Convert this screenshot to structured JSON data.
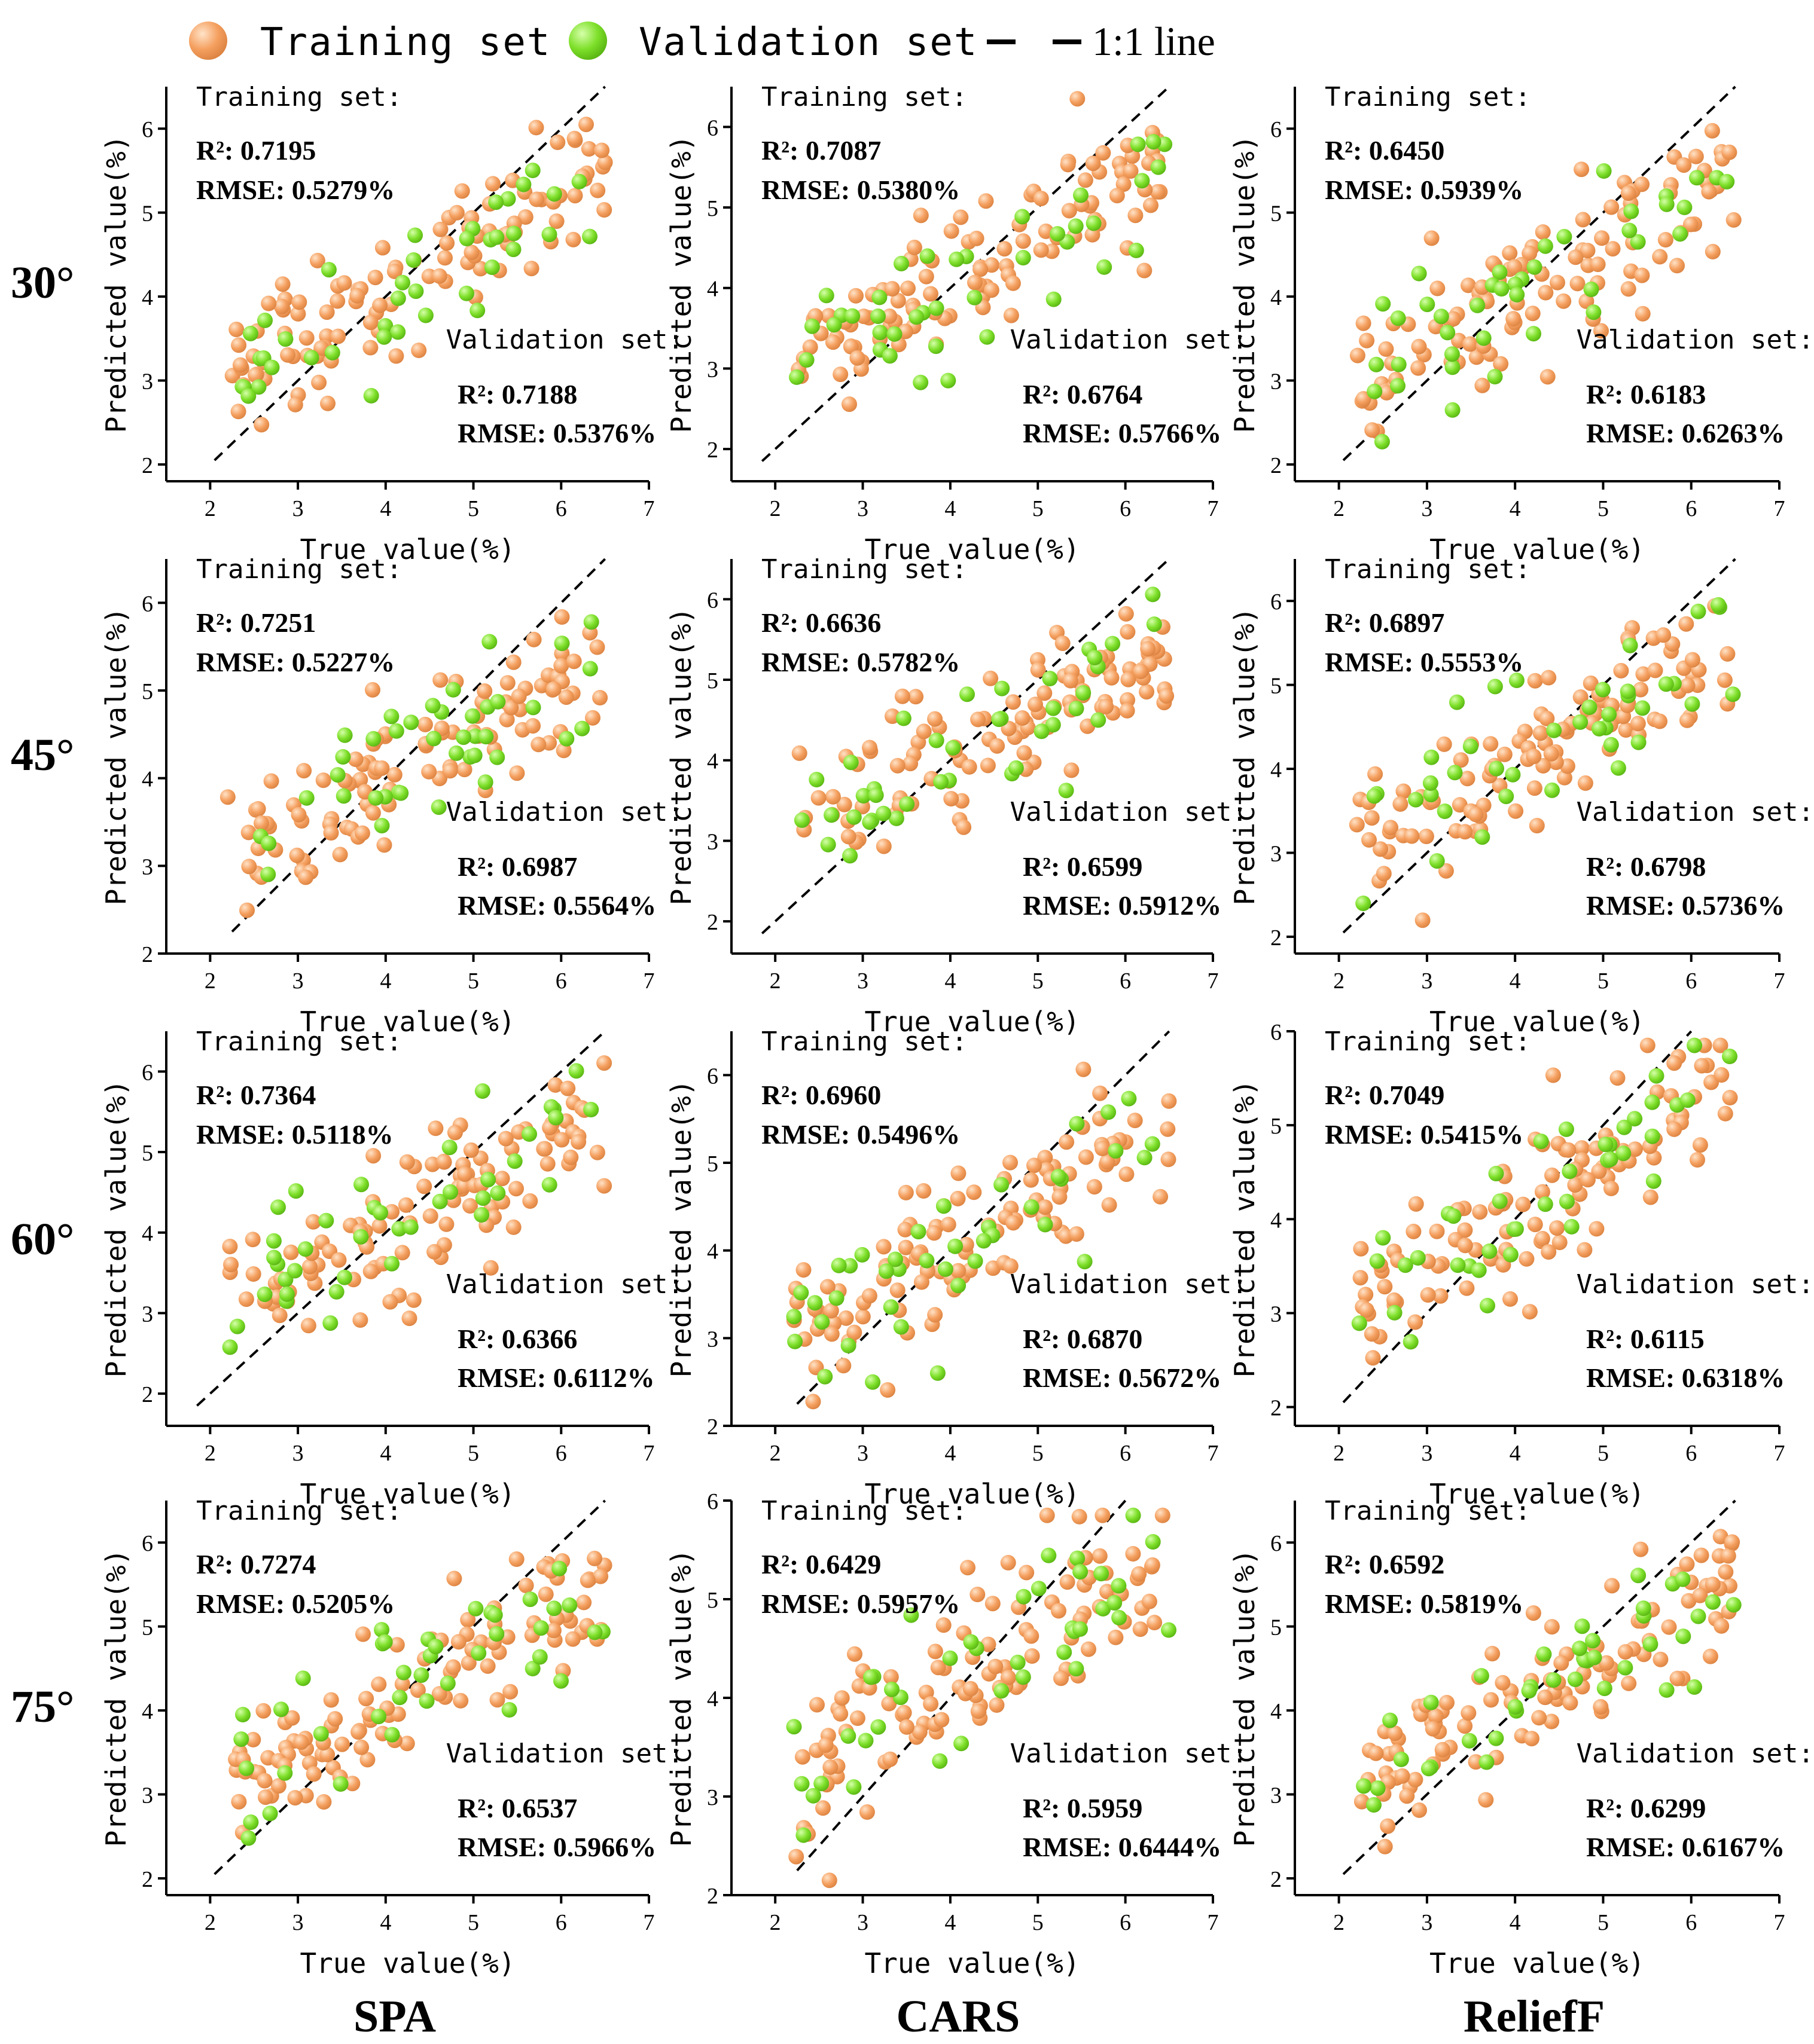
{
  "colors": {
    "training": "#f5a060",
    "training_highlight": "#ffe3c8",
    "training_edge": "#d9803e",
    "validation": "#7ee02a",
    "validation_highlight": "#d6ffaa",
    "validation_edge": "#55b010",
    "line": "#000000"
  },
  "legend": {
    "training_label": "Training set",
    "validation_label": "Validation set",
    "line_label": "1:1 line"
  },
  "row_labels": [
    "30°",
    "45°",
    "60°",
    "75°"
  ],
  "col_labels": [
    "SPA",
    "CARS",
    "ReliefF"
  ],
  "text": {
    "xlabel": "True value(%)",
    "ylabel": "Predicted value(%)",
    "training_heading": "Training set:",
    "validation_heading": "Validation set:",
    "r2_label": "R²:",
    "rmse_label": "RMSE:"
  },
  "chart_data": [
    {
      "type": "scatter",
      "row": "30°",
      "col": "SPA",
      "xlim": [
        1.5,
        7
      ],
      "ylim": [
        1.8,
        6.5
      ],
      "yticks": [
        2,
        3,
        4,
        5,
        6
      ],
      "xticks": [
        2,
        3,
        4,
        5,
        6,
        7
      ],
      "training": {
        "r2": "0.7195",
        "rmse": "0.5279%"
      },
      "validation": {
        "r2": "0.7188",
        "rmse": "0.5376%"
      },
      "seed": 11
    },
    {
      "type": "scatter",
      "row": "30°",
      "col": "CARS",
      "xlim": [
        1.5,
        7
      ],
      "ylim": [
        1.6,
        6.5
      ],
      "yticks": [
        2,
        3,
        4,
        5,
        6
      ],
      "xticks": [
        2,
        3,
        4,
        5,
        6,
        7
      ],
      "training": {
        "r2": "0.7087",
        "rmse": "0.5380%"
      },
      "validation": {
        "r2": "0.6764",
        "rmse": "0.5766%"
      },
      "seed": 12
    },
    {
      "type": "scatter",
      "row": "30°",
      "col": "ReliefF",
      "xlim": [
        1.5,
        7
      ],
      "ylim": [
        1.8,
        6.5
      ],
      "yticks": [
        2,
        3,
        4,
        5,
        6
      ],
      "xticks": [
        2,
        3,
        4,
        5,
        6,
        7
      ],
      "training": {
        "r2": "0.6450",
        "rmse": "0.5939%"
      },
      "validation": {
        "r2": "0.6183",
        "rmse": "0.6263%"
      },
      "seed": 13
    },
    {
      "type": "scatter",
      "row": "45°",
      "col": "SPA",
      "xlim": [
        1.5,
        7
      ],
      "ylim": [
        2,
        6.5
      ],
      "yticks": [
        2,
        3,
        4,
        5,
        6
      ],
      "xticks": [
        2,
        3,
        4,
        5,
        6,
        7
      ],
      "training": {
        "r2": "0.7251",
        "rmse": "0.5227%"
      },
      "validation": {
        "r2": "0.6987",
        "rmse": "0.5564%"
      },
      "seed": 21
    },
    {
      "type": "scatter",
      "row": "45°",
      "col": "CARS",
      "xlim": [
        1.5,
        7
      ],
      "ylim": [
        1.6,
        6.5
      ],
      "yticks": [
        2,
        3,
        4,
        5,
        6
      ],
      "xticks": [
        2,
        3,
        4,
        5,
        6,
        7
      ],
      "training": {
        "r2": "0.6636",
        "rmse": "0.5782%"
      },
      "validation": {
        "r2": "0.6599",
        "rmse": "0.5912%"
      },
      "seed": 22
    },
    {
      "type": "scatter",
      "row": "45°",
      "col": "ReliefF",
      "xlim": [
        1.5,
        7
      ],
      "ylim": [
        1.8,
        6.5
      ],
      "yticks": [
        2,
        3,
        4,
        5,
        6
      ],
      "xticks": [
        2,
        3,
        4,
        5,
        6,
        7
      ],
      "training": {
        "r2": "0.6897",
        "rmse": "0.5553%"
      },
      "validation": {
        "r2": "0.6798",
        "rmse": "0.5736%"
      },
      "seed": 23
    },
    {
      "type": "scatter",
      "row": "60°",
      "col": "SPA",
      "xlim": [
        1.5,
        7
      ],
      "ylim": [
        1.6,
        6.5
      ],
      "yticks": [
        2,
        3,
        4,
        5,
        6
      ],
      "xticks": [
        2,
        3,
        4,
        5,
        6,
        7
      ],
      "training": {
        "r2": "0.7364",
        "rmse": "0.5118%"
      },
      "validation": {
        "r2": "0.6366",
        "rmse": "0.6112%"
      },
      "seed": 31
    },
    {
      "type": "scatter",
      "row": "60°",
      "col": "CARS",
      "xlim": [
        1.5,
        7
      ],
      "ylim": [
        2,
        6.5
      ],
      "yticks": [
        2,
        3,
        4,
        5,
        6
      ],
      "xticks": [
        2,
        3,
        4,
        5,
        6,
        7
      ],
      "training": {
        "r2": "0.6960",
        "rmse": "0.5496%"
      },
      "validation": {
        "r2": "0.6870",
        "rmse": "0.5672%"
      },
      "seed": 32
    },
    {
      "type": "scatter",
      "row": "60°",
      "col": "ReliefF",
      "xlim": [
        1.5,
        7
      ],
      "ylim": [
        1.8,
        6
      ],
      "yticks": [
        2,
        3,
        4,
        5,
        6
      ],
      "xticks": [
        2,
        3,
        4,
        5,
        6,
        7
      ],
      "training": {
        "r2": "0.7049",
        "rmse": "0.5415%"
      },
      "validation": {
        "r2": "0.6115",
        "rmse": "0.6318%"
      },
      "seed": 33
    },
    {
      "type": "scatter",
      "row": "75°",
      "col": "SPA",
      "xlim": [
        1.5,
        7
      ],
      "ylim": [
        1.8,
        6.5
      ],
      "yticks": [
        2,
        3,
        4,
        5,
        6
      ],
      "xticks": [
        2,
        3,
        4,
        5,
        6,
        7
      ],
      "training": {
        "r2": "0.7274",
        "rmse": "0.5205%"
      },
      "validation": {
        "r2": "0.6537",
        "rmse": "0.5966%"
      },
      "seed": 41
    },
    {
      "type": "scatter",
      "row": "75°",
      "col": "CARS",
      "xlim": [
        1.5,
        7
      ],
      "ylim": [
        2,
        6
      ],
      "yticks": [
        2,
        3,
        4,
        5,
        6
      ],
      "xticks": [
        2,
        3,
        4,
        5,
        6,
        7
      ],
      "training": {
        "r2": "0.6429",
        "rmse": "0.5957%"
      },
      "validation": {
        "r2": "0.5959",
        "rmse": "0.6444%"
      },
      "seed": 42
    },
    {
      "type": "scatter",
      "row": "75°",
      "col": "ReliefF",
      "xlim": [
        1.5,
        7
      ],
      "ylim": [
        1.8,
        6.5
      ],
      "yticks": [
        2,
        3,
        4,
        5,
        6
      ],
      "xticks": [
        2,
        3,
        4,
        5,
        6,
        7
      ],
      "training": {
        "r2": "0.6592",
        "rmse": "0.5819%"
      },
      "validation": {
        "r2": "0.6299",
        "rmse": "0.6167%"
      },
      "seed": 43
    }
  ]
}
